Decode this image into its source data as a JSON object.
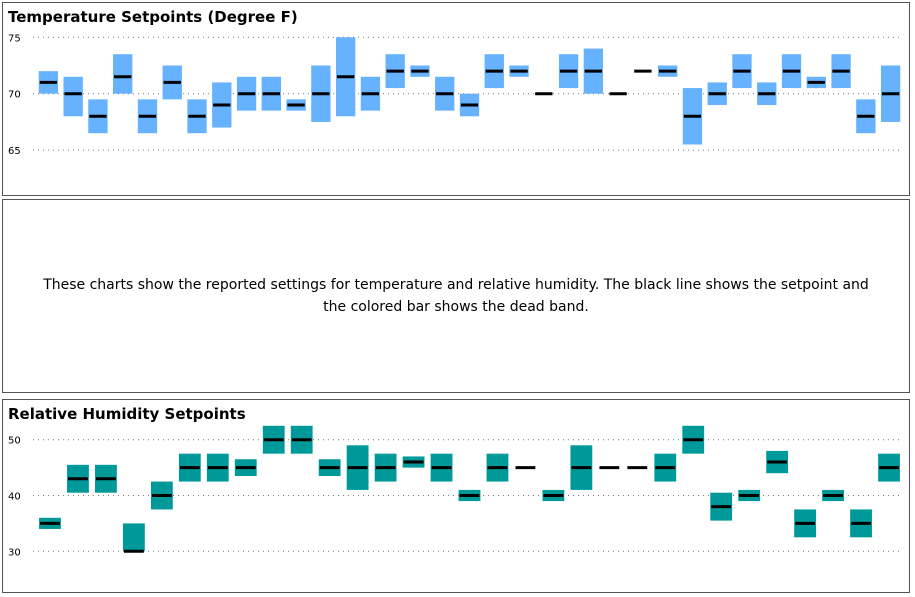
{
  "note": "These charts show the reported settings for temperature and relative humidity. The black line shows the setpoint and the colored bar shows the dead band.",
  "chart_data": [
    {
      "type": "bar",
      "title": "Temperature Setpoints (Degree F)",
      "ylim": [
        62,
        76
      ],
      "yticks": [
        65,
        70,
        75
      ],
      "grid": true,
      "bar_color": "#66b2ff",
      "setpoint_color": "#000000",
      "setpoints": [
        71,
        70,
        68,
        71.5,
        68,
        71,
        68,
        69,
        70,
        70,
        69,
        70,
        71.5,
        70,
        72,
        72,
        70,
        69,
        72,
        72,
        70,
        72,
        72,
        70,
        72,
        72,
        68,
        70,
        72,
        70,
        72,
        71,
        72,
        68,
        70
      ],
      "band_low": [
        70,
        68,
        66.5,
        70,
        66.5,
        69.5,
        66.5,
        67,
        68.5,
        68.5,
        68.5,
        67.5,
        68,
        68.5,
        70.5,
        71.5,
        68.5,
        68,
        70.5,
        71.5,
        70,
        70.5,
        70,
        70,
        72,
        71.5,
        65.5,
        69,
        70.5,
        69,
        70.5,
        70.5,
        70.5,
        66.5,
        67.5
      ],
      "band_high": [
        72,
        71.5,
        69.5,
        73.5,
        69.5,
        72.5,
        69.5,
        71,
        71.5,
        71.5,
        69.5,
        72.5,
        75,
        71.5,
        73.5,
        72.5,
        71.5,
        70,
        73.5,
        72.5,
        70,
        73.5,
        74,
        70,
        72,
        72.5,
        70.5,
        71,
        73.5,
        71,
        73.5,
        71.5,
        73.5,
        69.5,
        72.5
      ]
    },
    {
      "type": "bar",
      "title": "Relative Humidity Setpoints",
      "ylim": [
        27,
        53
      ],
      "yticks": [
        30,
        40,
        50
      ],
      "grid": true,
      "bar_color": "#009999",
      "setpoint_color": "#000000",
      "setpoints": [
        35,
        43,
        43,
        30,
        40,
        45,
        45,
        45,
        50,
        50,
        45,
        45,
        45,
        46,
        45,
        40,
        45,
        45,
        40,
        45,
        45,
        45,
        45,
        50,
        38,
        40,
        46,
        35,
        40,
        35,
        45
      ],
      "band_low": [
        34,
        40.5,
        40.5,
        30,
        37.5,
        42.5,
        42.5,
        43.5,
        47.5,
        47.5,
        43.5,
        41,
        42.5,
        45,
        42.5,
        39,
        42.5,
        45,
        39,
        41,
        45,
        45,
        42.5,
        47.5,
        35.5,
        39,
        44,
        32.5,
        39,
        32.5,
        42.5
      ],
      "band_high": [
        36,
        45.5,
        45.5,
        35,
        42.5,
        47.5,
        47.5,
        46.5,
        52.5,
        52.5,
        46.5,
        49,
        47.5,
        47,
        47.5,
        41,
        47.5,
        45,
        41,
        49,
        45,
        45,
        47.5,
        52.5,
        40.5,
        41,
        48,
        37.5,
        41,
        37.5,
        47.5
      ]
    }
  ]
}
